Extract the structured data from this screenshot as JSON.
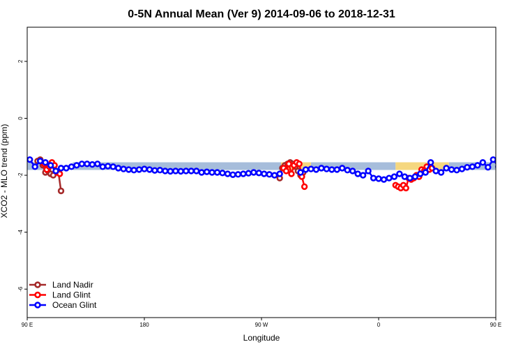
{
  "chart_data": {
    "type": "line",
    "title": "0-5N Annual Mean (Ver 9)   2014-09-06 to 2018-12-31",
    "xlabel": "Longitude",
    "ylabel": "XCO2 - MLO trend (ppm)",
    "xlim": [
      0,
      360
    ],
    "ylim": [
      -7.0,
      3.2
    ],
    "x_ticks": [
      {
        "value": 0,
        "label": "90 E"
      },
      {
        "value": 90,
        "label": "180"
      },
      {
        "value": 180,
        "label": "90 W"
      },
      {
        "value": 270,
        "label": "0"
      },
      {
        "value": 360,
        "label": "90 E"
      },
      {
        "value": 450,
        "label": "180"
      }
    ],
    "y_ticks": [
      {
        "value": 2,
        "label": "2"
      },
      {
        "value": 0,
        "label": "0"
      },
      {
        "value": -2,
        "label": "-2"
      },
      {
        "value": -4,
        "label": "-4"
      },
      {
        "value": -6,
        "label": "-6"
      }
    ],
    "legend_position": "bottom-left",
    "bands": [
      {
        "color": "#a6bddb",
        "segments": [
          [
            0,
            15
          ],
          [
            35,
            195
          ],
          [
            218,
            283
          ],
          [
            324,
            360
          ]
        ]
      },
      {
        "color": "#f5d77f",
        "segments": [
          [
            195,
            218
          ],
          [
            283,
            324
          ]
        ]
      }
    ],
    "band_y": -1.68,
    "series": [
      {
        "name": "Land Nadir",
        "color": "#a52a2a",
        "segments": [
          {
            "x": [
              8,
              10,
              12,
              14,
              16,
              18,
              20,
              22,
              24,
              26
            ],
            "y": [
              -1.5,
              -1.45,
              -1.65,
              -1.9,
              -1.85,
              -1.95,
              -2.0,
              -1.85,
              -1.9,
              -2.55
            ]
          },
          {
            "x": [
              194,
              196,
              198,
              200,
              202,
              204,
              206,
              208,
              210,
              212
            ],
            "y": [
              -2.1,
              -1.75,
              -1.65,
              -1.6,
              -1.55,
              -1.6,
              -1.7,
              -1.85,
              -2.0,
              -1.9
            ]
          },
          {
            "x": [
              368,
              370,
              372,
              374,
              376,
              378,
              380,
              382,
              384,
              386
            ],
            "y": [
              -1.5,
              -1.45,
              -1.65,
              -1.9,
              -1.85,
              -1.95,
              -2.0,
              -1.85,
              -1.9,
              -2.55
            ]
          }
        ]
      },
      {
        "name": "Land Glint",
        "color": "#ff0000",
        "segments": [
          {
            "x": [
              13,
              15,
              17,
              19,
              21,
              23,
              25
            ],
            "y": [
              -1.6,
              -1.8,
              -1.7,
              -1.55,
              -1.65,
              -1.9,
              -1.95
            ]
          },
          {
            "x": [
              197,
              199,
              201,
              203,
              205,
              207,
              209,
              211,
              213
            ],
            "y": [
              -1.75,
              -1.85,
              -1.6,
              -1.95,
              -1.65,
              -1.55,
              -1.6,
              -2.05,
              -2.4
            ]
          },
          {
            "x": [
              283,
              285,
              287,
              289,
              291,
              293,
              295,
              297,
              299,
              301,
              303,
              305,
              307,
              309,
              311
            ],
            "y": [
              -2.35,
              -2.4,
              -2.45,
              -2.35,
              -2.45,
              -2.1,
              -2.15,
              -2.1,
              -2.0,
              -2.05,
              -1.8,
              -1.85,
              -1.7,
              -1.8,
              -1.75
            ]
          },
          {
            "x": [
              373,
              375,
              377,
              379,
              381,
              383,
              385
            ],
            "y": [
              -1.6,
              -1.8,
              -1.7,
              -1.55,
              -1.65,
              -1.9,
              -1.95
            ]
          }
        ]
      },
      {
        "name": "Ocean Glint",
        "color": "#0000ff",
        "segments": [
          {
            "x": [
              2,
              6,
              10,
              14,
              18,
              22,
              26,
              30,
              34,
              38,
              42,
              46,
              50,
              54,
              58,
              62,
              66,
              70,
              74,
              78,
              82,
              86,
              90,
              94,
              98,
              102,
              106,
              110,
              114,
              118,
              122,
              126,
              130,
              134,
              138,
              142,
              146,
              150,
              154,
              158,
              162,
              166,
              170,
              174,
              178,
              182,
              186,
              190,
              194
            ],
            "y": [
              -1.45,
              -1.7,
              -1.5,
              -1.55,
              -1.65,
              -1.85,
              -1.75,
              -1.75,
              -1.7,
              -1.65,
              -1.6,
              -1.6,
              -1.62,
              -1.6,
              -1.7,
              -1.68,
              -1.7,
              -1.75,
              -1.78,
              -1.8,
              -1.82,
              -1.8,
              -1.78,
              -1.8,
              -1.83,
              -1.82,
              -1.85,
              -1.86,
              -1.85,
              -1.86,
              -1.85,
              -1.85,
              -1.85,
              -1.9,
              -1.88,
              -1.9,
              -1.9,
              -1.92,
              -1.95,
              -1.98,
              -1.97,
              -1.95,
              -1.93,
              -1.9,
              -1.92,
              -1.95,
              -1.97,
              -2.0,
              -1.95
            ]
          },
          {
            "x": [
              210,
              214,
              218,
              222,
              226,
              230,
              234,
              238,
              242,
              246,
              250,
              254,
              258,
              262,
              266,
              270,
              274,
              278,
              282,
              286,
              290,
              294,
              298,
              302,
              306,
              310,
              314,
              318,
              322,
              326,
              330,
              334,
              338,
              342,
              346,
              350,
              354,
              358,
              362,
              366,
              370,
              374,
              378,
              382,
              386,
              390,
              394,
              398,
              402,
              406,
              410,
              414,
              418,
              422,
              426,
              430,
              434,
              438,
              442,
              446,
              450
            ],
            "y": [
              -1.9,
              -1.8,
              -1.78,
              -1.8,
              -1.75,
              -1.78,
              -1.8,
              -1.8,
              -1.75,
              -1.82,
              -1.85,
              -1.95,
              -2.0,
              -1.85,
              -2.1,
              -2.12,
              -2.15,
              -2.1,
              -2.05,
              -1.95,
              -2.05,
              -2.1,
              -2.05,
              -1.95,
              -1.9,
              -1.55,
              -1.85,
              -1.9,
              -1.75,
              -1.8,
              -1.82,
              -1.78,
              -1.72,
              -1.7,
              -1.65,
              -1.55,
              -1.72,
              -1.45,
              -1.7,
              -1.5,
              -1.45,
              -1.5,
              -1.65,
              -1.75,
              -1.8,
              -1.7,
              -1.75,
              -1.72,
              -1.68,
              -1.65,
              -1.6,
              -1.6,
              -1.62,
              -1.6,
              -1.62,
              -1.6,
              -1.62,
              -1.62,
              -1.7,
              -1.68,
              -1.7
            ]
          }
        ]
      }
    ]
  }
}
